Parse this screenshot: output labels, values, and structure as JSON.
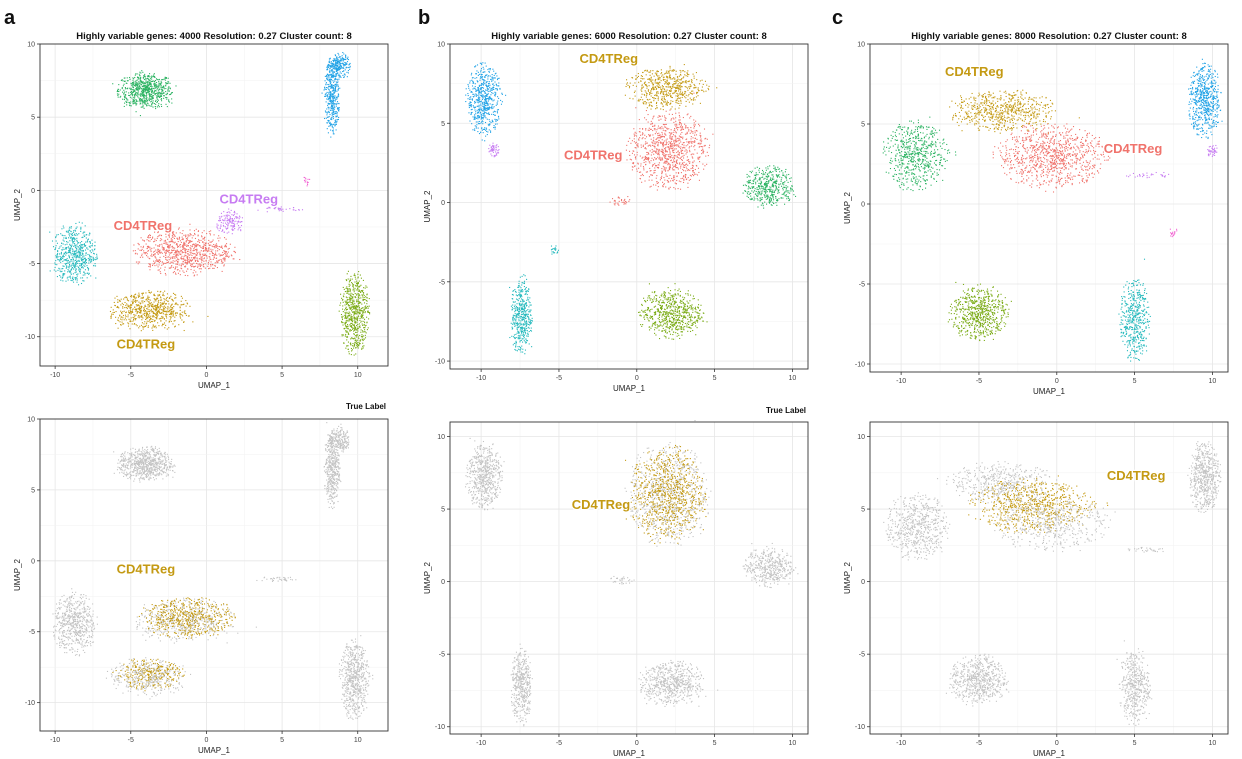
{
  "colors": {
    "red": "#f0736c",
    "gold": "#c49a13",
    "green": "#2cb362",
    "olive": "#7aab15",
    "teal": "#25b9bd",
    "blue": "#20a2e6",
    "purple": "#c77cf2",
    "pink": "#f265d3",
    "gray": "#c3c3c3"
  },
  "chart_data": [
    {
      "type": "scatter",
      "panel_letter": "a",
      "title": "Highly variable genes: 4000    Resolution: 0.27    Cluster count: 8",
      "subtitle": "",
      "xlabel": "UMAP_1",
      "ylabel": "UMAP_2",
      "xlim": [
        -11,
        12
      ],
      "ylim": [
        -12,
        10
      ],
      "xticks": [
        -10,
        -5,
        0,
        5,
        10
      ],
      "yticks": [
        -10,
        -5,
        0,
        5,
        10
      ],
      "grid": true,
      "clusters": [
        {
          "color": "green",
          "cx": -4,
          "cy": 6.8,
          "rx": 1.8,
          "ry": 1.2,
          "n": 700
        },
        {
          "color": "blue",
          "cx": 8.3,
          "cy": 6.5,
          "rx": 0.5,
          "ry": 2.6,
          "n": 420
        },
        {
          "color": "blue",
          "cx": 8.8,
          "cy": 8.5,
          "rx": 0.7,
          "ry": 0.9,
          "n": 200
        },
        {
          "color": "teal",
          "cx": -8.7,
          "cy": -4.4,
          "rx": 1.4,
          "ry": 2.1,
          "n": 560
        },
        {
          "color": "red",
          "cx": -1.5,
          "cy": -4.2,
          "rx": 3.2,
          "ry": 1.5,
          "n": 850
        },
        {
          "color": "purple",
          "cx": 1.6,
          "cy": -2.2,
          "rx": 0.9,
          "ry": 0.8,
          "n": 140
        },
        {
          "color": "gold",
          "cx": -3.8,
          "cy": -8.2,
          "rx": 2.6,
          "ry": 1.3,
          "n": 650
        },
        {
          "color": "olive",
          "cx": 9.8,
          "cy": -8.4,
          "rx": 0.95,
          "ry": 2.7,
          "n": 600
        },
        {
          "color": "purple",
          "cx": 4.8,
          "cy": -1.3,
          "rx": 1.5,
          "ry": 0.18,
          "n": 35
        },
        {
          "color": "pink",
          "cx": 6.6,
          "cy": 0.6,
          "rx": 0.3,
          "ry": 0.3,
          "n": 14
        }
      ],
      "annotations": [
        {
          "text": "CD4TReg",
          "x": 2.8,
          "y": -0.9,
          "color": "purple"
        },
        {
          "text": "CD4TReg",
          "x": -4.2,
          "y": -2.7,
          "color": "red"
        },
        {
          "text": "CD4TReg",
          "x": -4.0,
          "y": -10.8,
          "color": "gold"
        }
      ]
    },
    {
      "type": "scatter",
      "panel_letter": "b",
      "title": "Highly variable genes: 6000    Resolution: 0.27    Cluster count: 8",
      "subtitle": "",
      "xlabel": "UMAP_1",
      "ylabel": "UMAP_2",
      "xlim": [
        -12,
        11
      ],
      "ylim": [
        -10.5,
        10
      ],
      "xticks": [
        -10,
        -5,
        0,
        5,
        10
      ],
      "yticks": [
        -10,
        -5,
        0,
        5,
        10
      ],
      "grid": true,
      "clusters": [
        {
          "color": "blue",
          "cx": -9.8,
          "cy": 6.5,
          "rx": 1.1,
          "ry": 2.2,
          "n": 560
        },
        {
          "color": "purple",
          "cx": -9.2,
          "cy": 3.3,
          "rx": 0.35,
          "ry": 0.45,
          "n": 50
        },
        {
          "color": "gold",
          "cx": 2.0,
          "cy": 7.2,
          "rx": 2.5,
          "ry": 1.3,
          "n": 560
        },
        {
          "color": "red",
          "cx": 2.0,
          "cy": 3.3,
          "rx": 2.5,
          "ry": 2.4,
          "n": 900
        },
        {
          "color": "green",
          "cx": 8.5,
          "cy": 1.0,
          "rx": 1.6,
          "ry": 1.3,
          "n": 430
        },
        {
          "color": "teal",
          "cx": -7.4,
          "cy": -7.2,
          "rx": 0.65,
          "ry": 2.5,
          "n": 430
        },
        {
          "color": "olive",
          "cx": 2.2,
          "cy": -7.0,
          "rx": 2.0,
          "ry": 1.5,
          "n": 620
        },
        {
          "color": "red",
          "cx": -1.0,
          "cy": 0.1,
          "rx": 0.8,
          "ry": 0.3,
          "n": 30
        },
        {
          "color": "teal",
          "cx": -5.3,
          "cy": -3.0,
          "rx": 0.25,
          "ry": 0.4,
          "n": 20
        }
      ],
      "annotations": [
        {
          "text": "CD4TReg",
          "x": -1.8,
          "y": 8.8,
          "color": "gold"
        },
        {
          "text": "CD4TReg",
          "x": -2.8,
          "y": 2.7,
          "color": "red"
        }
      ]
    },
    {
      "type": "scatter",
      "panel_letter": "c",
      "title": "Highly variable genes: 8000    Resolution: 0.27    Cluster count: 8",
      "subtitle": "",
      "xlabel": "UMAP_1",
      "ylabel": "UMAP_2",
      "xlim": [
        -12,
        11
      ],
      "ylim": [
        -10.5,
        10
      ],
      "xticks": [
        -10,
        -5,
        0,
        5,
        10
      ],
      "yticks": [
        -10,
        -5,
        0,
        5,
        10
      ],
      "grid": true,
      "clusters": [
        {
          "color": "blue",
          "cx": 9.5,
          "cy": 6.5,
          "rx": 1.0,
          "ry": 2.2,
          "n": 560
        },
        {
          "color": "purple",
          "cx": 10.0,
          "cy": 3.3,
          "rx": 0.35,
          "ry": 0.4,
          "n": 40
        },
        {
          "color": "gold",
          "cx": -3.5,
          "cy": 5.8,
          "rx": 3.3,
          "ry": 1.3,
          "n": 620
        },
        {
          "color": "red",
          "cx": -0.3,
          "cy": 3.0,
          "rx": 3.5,
          "ry": 1.9,
          "n": 900
        },
        {
          "color": "green",
          "cx": -9.0,
          "cy": 3.0,
          "rx": 2.0,
          "ry": 2.1,
          "n": 580
        },
        {
          "color": "olive",
          "cx": -5.0,
          "cy": -6.8,
          "rx": 1.8,
          "ry": 1.7,
          "n": 620
        },
        {
          "color": "teal",
          "cx": 5.0,
          "cy": -7.2,
          "rx": 0.95,
          "ry": 2.5,
          "n": 450
        },
        {
          "color": "purple",
          "cx": 5.8,
          "cy": 1.8,
          "rx": 1.6,
          "ry": 0.2,
          "n": 30
        },
        {
          "color": "pink",
          "cx": 7.5,
          "cy": -1.8,
          "rx": 0.3,
          "ry": 0.3,
          "n": 16
        }
      ],
      "annotations": [
        {
          "text": "CD4TReg",
          "x": -5.3,
          "y": 8.0,
          "color": "gold"
        },
        {
          "text": "CD4TReg",
          "x": 4.9,
          "y": 3.2,
          "color": "red"
        }
      ],
      "legend_title": "True Label"
    },
    {
      "type": "scatter",
      "panel_letter": "",
      "title": "",
      "subtitle": "",
      "xlabel": "UMAP_1",
      "ylabel": "UMAP_2",
      "xlim": [
        -11,
        12
      ],
      "ylim": [
        -12,
        10
      ],
      "xticks": [
        -10,
        -5,
        0,
        5,
        10
      ],
      "yticks": [
        -10,
        -5,
        0,
        5,
        10
      ],
      "grid": true,
      "legend_title": "True Label",
      "clusters": [
        {
          "color": "gray",
          "cx": -4,
          "cy": 6.8,
          "rx": 1.8,
          "ry": 1.2,
          "n": 700
        },
        {
          "color": "gray",
          "cx": 8.3,
          "cy": 6.5,
          "rx": 0.5,
          "ry": 2.6,
          "n": 420
        },
        {
          "color": "gray",
          "cx": 8.8,
          "cy": 8.5,
          "rx": 0.7,
          "ry": 0.9,
          "n": 200
        },
        {
          "color": "gray",
          "cx": -8.7,
          "cy": -4.4,
          "rx": 1.4,
          "ry": 2.1,
          "n": 560
        },
        {
          "color": "gray",
          "cx": -1.5,
          "cy": -4.2,
          "rx": 3.2,
          "ry": 1.5,
          "n": 450
        },
        {
          "color": "gold",
          "cx": -1.2,
          "cy": -4.0,
          "rx": 3.0,
          "ry": 1.4,
          "n": 520
        },
        {
          "color": "gold",
          "cx": -3.8,
          "cy": -8.0,
          "rx": 2.2,
          "ry": 1.0,
          "n": 320
        },
        {
          "color": "gray",
          "cx": -3.8,
          "cy": -8.2,
          "rx": 2.6,
          "ry": 1.3,
          "n": 320
        },
        {
          "color": "gray",
          "cx": 9.8,
          "cy": -8.4,
          "rx": 0.95,
          "ry": 2.7,
          "n": 600
        },
        {
          "color": "gray",
          "cx": 4.8,
          "cy": -1.3,
          "rx": 1.5,
          "ry": 0.18,
          "n": 35
        }
      ],
      "annotations": [
        {
          "text": "CD4TReg",
          "x": -4.0,
          "y": -0.9,
          "color": "gold"
        }
      ]
    },
    {
      "type": "scatter",
      "panel_letter": "",
      "title": "",
      "subtitle": "",
      "xlabel": "UMAP_1",
      "ylabel": "UMAP_2",
      "xlim": [
        -12,
        11
      ],
      "ylim": [
        -10.5,
        11
      ],
      "xticks": [
        -10,
        -5,
        0,
        5,
        10
      ],
      "yticks": [
        -10,
        -5,
        0,
        5,
        10
      ],
      "grid": true,
      "legend_title": "True Label",
      "clusters": [
        {
          "color": "gray",
          "cx": -9.8,
          "cy": 7.3,
          "rx": 1.1,
          "ry": 2.3,
          "n": 580
        },
        {
          "color": "gray",
          "cx": 2.0,
          "cy": 6.0,
          "rx": 2.6,
          "ry": 3.4,
          "n": 700
        },
        {
          "color": "gold",
          "cx": 2.0,
          "cy": 6.0,
          "rx": 2.3,
          "ry": 3.2,
          "n": 820
        },
        {
          "color": "gray",
          "cx": 8.5,
          "cy": 1.0,
          "rx": 1.6,
          "ry": 1.3,
          "n": 430
        },
        {
          "color": "gray",
          "cx": -7.4,
          "cy": -7.2,
          "rx": 0.65,
          "ry": 2.5,
          "n": 430
        },
        {
          "color": "gray",
          "cx": 2.2,
          "cy": -7.0,
          "rx": 2.0,
          "ry": 1.5,
          "n": 620
        },
        {
          "color": "gray",
          "cx": -1.0,
          "cy": 0.1,
          "rx": 0.8,
          "ry": 0.3,
          "n": 30
        }
      ],
      "annotations": [
        {
          "text": "CD4TReg",
          "x": -2.3,
          "y": 5.0,
          "color": "gold"
        }
      ]
    },
    {
      "type": "scatter",
      "panel_letter": "",
      "title": "",
      "subtitle": "",
      "xlabel": "UMAP_1",
      "ylabel": "UMAP_2",
      "xlim": [
        -12,
        11
      ],
      "ylim": [
        -10.5,
        11
      ],
      "xticks": [
        -10,
        -5,
        0,
        5,
        10
      ],
      "yticks": [
        -10,
        -5,
        0,
        5,
        10
      ],
      "grid": true,
      "clusters": [
        {
          "color": "gray",
          "cx": 9.5,
          "cy": 7.2,
          "rx": 1.0,
          "ry": 2.3,
          "n": 560
        },
        {
          "color": "gray",
          "cx": -3.5,
          "cy": 6.8,
          "rx": 3.3,
          "ry": 1.4,
          "n": 450
        },
        {
          "color": "gold",
          "cx": -1.5,
          "cy": 5.2,
          "rx": 3.8,
          "ry": 1.8,
          "n": 720
        },
        {
          "color": "gray",
          "cx": -0.3,
          "cy": 4.0,
          "rx": 3.5,
          "ry": 1.9,
          "n": 450
        },
        {
          "color": "gray",
          "cx": -9.0,
          "cy": 3.8,
          "rx": 2.0,
          "ry": 2.2,
          "n": 580
        },
        {
          "color": "gray",
          "cx": -5.0,
          "cy": -6.8,
          "rx": 1.8,
          "ry": 1.7,
          "n": 620
        },
        {
          "color": "gray",
          "cx": 5.0,
          "cy": -7.2,
          "rx": 0.95,
          "ry": 2.5,
          "n": 450
        },
        {
          "color": "gray",
          "cx": 5.8,
          "cy": 2.2,
          "rx": 1.6,
          "ry": 0.2,
          "n": 30
        }
      ],
      "annotations": [
        {
          "text": "CD4TReg",
          "x": 5.1,
          "y": 7.0,
          "color": "gold"
        }
      ]
    }
  ]
}
